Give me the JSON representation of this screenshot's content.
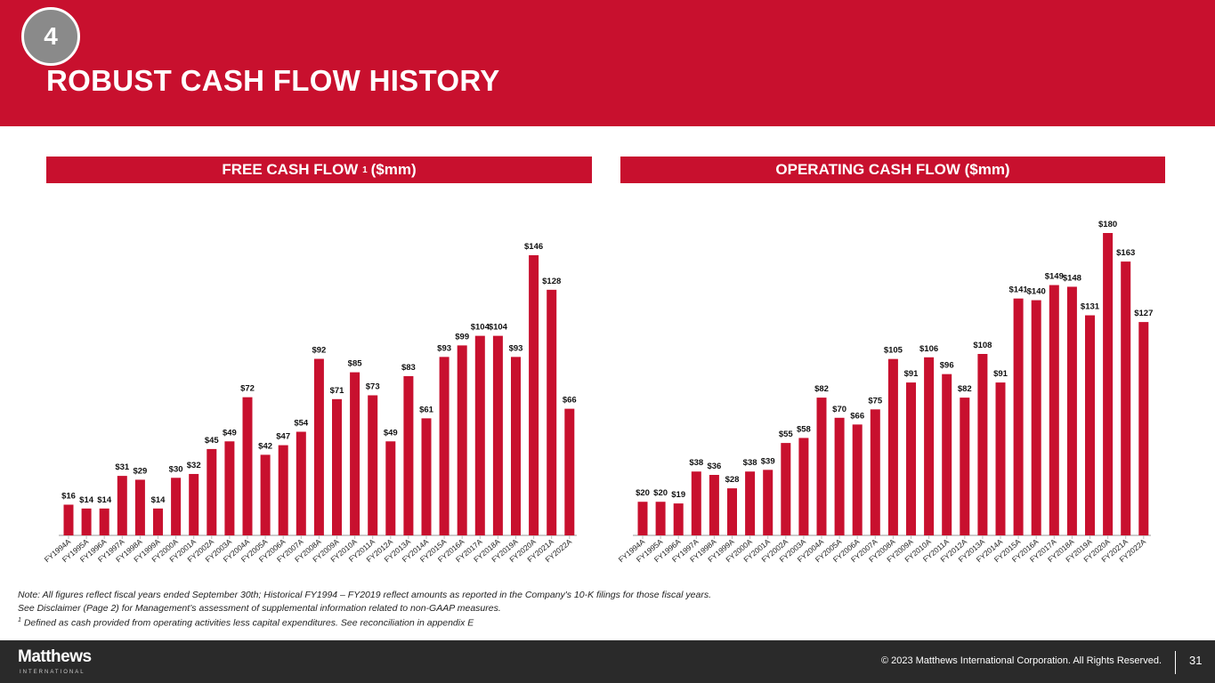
{
  "header": {
    "section_number": "4",
    "title": "ROBUST CASH FLOW HISTORY"
  },
  "sections": {
    "fcf_title": "FREE CASH FLOW",
    "fcf_sup": "1",
    "fcf_unit": "($mm)",
    "ocf_title": "OPERATING CASH FLOW ($mm)"
  },
  "notes": {
    "line1": "Note: All figures reflect fiscal years ended September 30th; Historical FY1994 – FY2019 reflect amounts as reported in the Company's 10-K filings for those fiscal years.",
    "line2": "See Disclaimer (Page 2) for Management’s assessment of supplemental information related to non-GAAP measures.",
    "line3_sup": "1",
    "line3": "Defined as cash provided from operating activities less capital expenditures. See reconciliation in appendix E"
  },
  "footer": {
    "logo": "Matthews",
    "logo_sub": "INTERNATIONAL",
    "copyright": "© 2023 Matthews International Corporation. All Rights Reserved.",
    "page_number": "31"
  },
  "colors": {
    "brand_red": "#c8102e",
    "footer_bg": "#2a2a2a"
  },
  "chart_data": [
    {
      "type": "bar",
      "title": "FREE CASH FLOW 1 ($mm)",
      "categories": [
        "FY1994A",
        "FY1995A",
        "FY1996A",
        "FY1997A",
        "FY1998A",
        "FY1999A",
        "FY2000A",
        "FY2001A",
        "FY2002A",
        "FY2003A",
        "FY2004A",
        "FY2005A",
        "FY2006A",
        "FY2007A",
        "FY2008A",
        "FY2009A",
        "FY2010A",
        "FY2011A",
        "FY2012A",
        "FY2013A",
        "FY2014A",
        "FY2015A",
        "FY2016A",
        "FY2017A",
        "FY2018A",
        "FY2019A",
        "FY2020A",
        "FY2021A",
        "FY2022A"
      ],
      "values": [
        16,
        14,
        14,
        31,
        29,
        14,
        30,
        32,
        45,
        49,
        72,
        42,
        47,
        54,
        92,
        71,
        85,
        73,
        49,
        83,
        61,
        93,
        99,
        104,
        104,
        93,
        146,
        128,
        66
      ],
      "label_prefix": "$",
      "ylim": [
        0,
        146
      ],
      "grid": false
    },
    {
      "type": "bar",
      "title": "OPERATING CASH FLOW ($mm)",
      "categories": [
        "FY1994A",
        "FY1995A",
        "FY1996A",
        "FY1997A",
        "FY1998A",
        "FY1999A",
        "FY2000A",
        "FY2001A",
        "FY2002A",
        "FY2003A",
        "FY2004A",
        "FY2005A",
        "FY2006A",
        "FY2007A",
        "FY2008A",
        "FY2009A",
        "FY2010A",
        "FY2011A",
        "FY2012A",
        "FY2013A",
        "FY2014A",
        "FY2015A",
        "FY2016A",
        "FY2017A",
        "FY2018A",
        "FY2019A",
        "FY2020A",
        "FY2021A",
        "FY2022A"
      ],
      "values": [
        20,
        20,
        19,
        38,
        36,
        28,
        38,
        39,
        55,
        58,
        82,
        70,
        66,
        75,
        105,
        91,
        106,
        96,
        82,
        108,
        91,
        141,
        140,
        149,
        148,
        131,
        180,
        163,
        127
      ],
      "label_prefix": "$",
      "ylim": [
        0,
        180
      ],
      "grid": false
    }
  ]
}
